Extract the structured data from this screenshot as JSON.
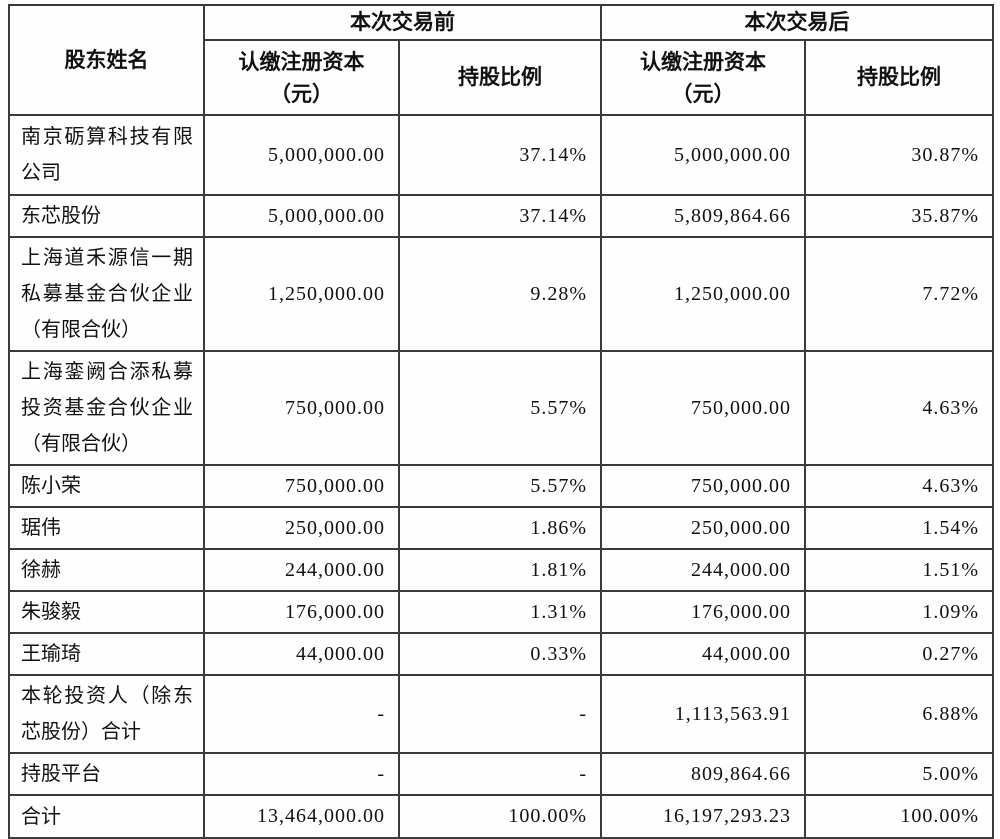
{
  "table": {
    "header": {
      "shareholder_col": "股东姓名",
      "before_group": "本次交易前",
      "after_group": "本次交易后",
      "capital_label": "认缴注册资本",
      "capital_unit": "（元）",
      "ratio_col": "持股比例"
    },
    "rows": [
      {
        "name": "南京砺算科技有限公司",
        "before_capital": "5,000,000.00",
        "before_ratio": "37.14%",
        "after_capital": "5,000,000.00",
        "after_ratio": "30.87%"
      },
      {
        "name": "东芯股份",
        "before_capital": "5,000,000.00",
        "before_ratio": "37.14%",
        "after_capital": "5,809,864.66",
        "after_ratio": "35.87%"
      },
      {
        "name": "上海道禾源信一期私募基金合伙企业（有限合伙）",
        "before_capital": "1,250,000.00",
        "before_ratio": "9.28%",
        "after_capital": "1,250,000.00",
        "after_ratio": "7.72%"
      },
      {
        "name": "上海銮阙合添私募投资基金合伙企业（有限合伙）",
        "before_capital": "750,000.00",
        "before_ratio": "5.57%",
        "after_capital": "750,000.00",
        "after_ratio": "4.63%"
      },
      {
        "name": "陈小荣",
        "before_capital": "750,000.00",
        "before_ratio": "5.57%",
        "after_capital": "750,000.00",
        "after_ratio": "4.63%"
      },
      {
        "name": "琚伟",
        "before_capital": "250,000.00",
        "before_ratio": "1.86%",
        "after_capital": "250,000.00",
        "after_ratio": "1.54%"
      },
      {
        "name": "徐赫",
        "before_capital": "244,000.00",
        "before_ratio": "1.81%",
        "after_capital": "244,000.00",
        "after_ratio": "1.51%"
      },
      {
        "name": "朱骏毅",
        "before_capital": "176,000.00",
        "before_ratio": "1.31%",
        "after_capital": "176,000.00",
        "after_ratio": "1.09%"
      },
      {
        "name": "王瑜琦",
        "before_capital": "44,000.00",
        "before_ratio": "0.33%",
        "after_capital": "44,000.00",
        "after_ratio": "0.27%"
      },
      {
        "name": "本轮投资人（除东芯股份）合计",
        "before_capital": "-",
        "before_ratio": "-",
        "after_capital": "1,113,563.91",
        "after_ratio": "6.88%"
      },
      {
        "name": "持股平台",
        "before_capital": "-",
        "before_ratio": "-",
        "after_capital": "809,864.66",
        "after_ratio": "5.00%"
      },
      {
        "name": "合计",
        "before_capital": "13,464,000.00",
        "before_ratio": "100.00%",
        "after_capital": "16,197,293.23",
        "after_ratio": "100.00%"
      }
    ]
  }
}
